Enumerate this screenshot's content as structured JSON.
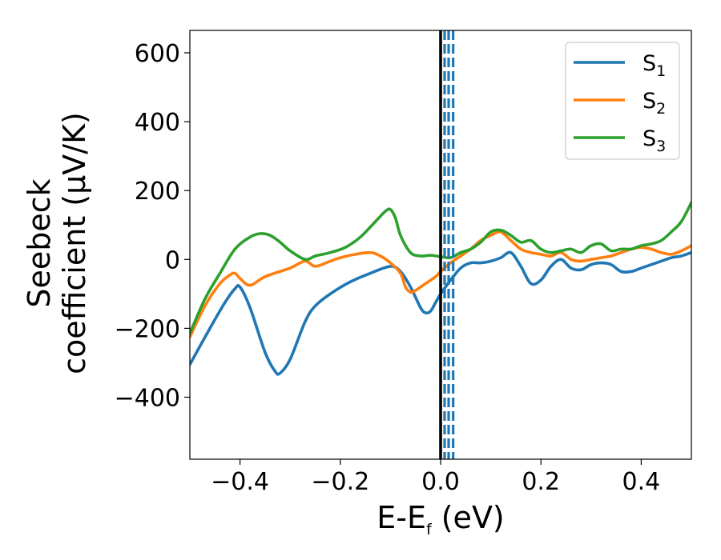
{
  "chart_data": {
    "type": "line",
    "xlabel": {
      "main": "E-E",
      "sub": "f",
      "unit": " (eV)"
    },
    "ylabel": {
      "line1": "Seebeck",
      "line2": "coefficient  (μV/K)"
    },
    "xlim": [
      -0.5,
      0.5
    ],
    "ylim": [
      -580,
      665
    ],
    "xticks": [
      -0.4,
      -0.2,
      0.0,
      0.2,
      0.4
    ],
    "xtick_labels": [
      "−0.4",
      "−0.2",
      "0.0",
      "0.2",
      "0.4"
    ],
    "yticks": [
      600,
      400,
      200,
      0,
      -200,
      -400
    ],
    "ytick_labels": [
      "600",
      "400",
      "200",
      "0",
      "−200",
      "−400"
    ],
    "grid": false,
    "legend_position": "top-right",
    "fermi_line": {
      "x": 0.0,
      "color": "#000000"
    },
    "dashed_lines": {
      "x": [
        0.008,
        0.016,
        0.025
      ],
      "color": "#1f77b4"
    },
    "series": [
      {
        "name": "S",
        "sub": "1",
        "color": "#1f77b4",
        "x": [
          -0.5,
          -0.46,
          -0.43,
          -0.41,
          -0.4,
          -0.38,
          -0.35,
          -0.33,
          -0.32,
          -0.3,
          -0.27,
          -0.25,
          -0.22,
          -0.18,
          -0.14,
          -0.1,
          -0.08,
          -0.06,
          -0.04,
          -0.03,
          -0.02,
          -0.01,
          0.0,
          0.02,
          0.04,
          0.06,
          0.08,
          0.1,
          0.12,
          0.14,
          0.16,
          0.18,
          0.2,
          0.22,
          0.24,
          0.26,
          0.28,
          0.3,
          0.32,
          0.34,
          0.36,
          0.38,
          0.4,
          0.42,
          0.44,
          0.46,
          0.48,
          0.5
        ],
        "y": [
          -305,
          -200,
          -125,
          -85,
          -80,
          -140,
          -270,
          -325,
          -330,
          -290,
          -180,
          -135,
          -100,
          -65,
          -40,
          -20,
          -35,
          -80,
          -140,
          -155,
          -150,
          -125,
          -100,
          -60,
          -25,
          -10,
          -10,
          -5,
          5,
          20,
          -20,
          -70,
          -60,
          -20,
          0,
          -25,
          -30,
          -15,
          -10,
          -15,
          -35,
          -35,
          -25,
          -15,
          -5,
          5,
          10,
          20
        ]
      },
      {
        "name": "S",
        "sub": "2",
        "color": "#ff7f0e",
        "x": [
          -0.5,
          -0.47,
          -0.44,
          -0.42,
          -0.41,
          -0.4,
          -0.38,
          -0.35,
          -0.3,
          -0.27,
          -0.25,
          -0.22,
          -0.2,
          -0.17,
          -0.14,
          -0.12,
          -0.1,
          -0.08,
          -0.07,
          -0.06,
          -0.05,
          -0.03,
          -0.01,
          0.0,
          0.02,
          0.04,
          0.06,
          0.08,
          0.1,
          0.12,
          0.14,
          0.16,
          0.18,
          0.2,
          0.22,
          0.24,
          0.26,
          0.28,
          0.3,
          0.32,
          0.34,
          0.36,
          0.38,
          0.4,
          0.42,
          0.44,
          0.46,
          0.48,
          0.5
        ],
        "y": [
          -225,
          -135,
          -70,
          -45,
          -40,
          -55,
          -75,
          -50,
          -25,
          -5,
          -20,
          -5,
          5,
          15,
          20,
          10,
          -10,
          -40,
          -80,
          -95,
          -90,
          -70,
          -50,
          -35,
          -10,
          10,
          30,
          55,
          70,
          80,
          55,
          30,
          20,
          15,
          10,
          20,
          0,
          -5,
          0,
          5,
          10,
          20,
          30,
          35,
          30,
          20,
          15,
          25,
          40
        ]
      },
      {
        "name": "S",
        "sub": "3",
        "color": "#2ca02c",
        "x": [
          -0.5,
          -0.47,
          -0.44,
          -0.41,
          -0.38,
          -0.36,
          -0.34,
          -0.32,
          -0.3,
          -0.27,
          -0.25,
          -0.22,
          -0.19,
          -0.16,
          -0.13,
          -0.11,
          -0.1,
          -0.09,
          -0.08,
          -0.06,
          -0.04,
          -0.02,
          0.0,
          0.02,
          0.04,
          0.06,
          0.08,
          0.1,
          0.12,
          0.14,
          0.16,
          0.18,
          0.2,
          0.22,
          0.24,
          0.26,
          0.28,
          0.3,
          0.32,
          0.34,
          0.36,
          0.38,
          0.4,
          0.42,
          0.44,
          0.46,
          0.48,
          0.5
        ],
        "y": [
          -215,
          -115,
          -40,
          30,
          65,
          75,
          70,
          50,
          25,
          0,
          10,
          20,
          35,
          65,
          110,
          140,
          145,
          120,
          70,
          20,
          10,
          12,
          8,
          5,
          20,
          30,
          50,
          80,
          85,
          70,
          50,
          55,
          30,
          20,
          25,
          30,
          20,
          40,
          45,
          25,
          30,
          30,
          40,
          45,
          55,
          80,
          110,
          165
        ]
      }
    ]
  }
}
